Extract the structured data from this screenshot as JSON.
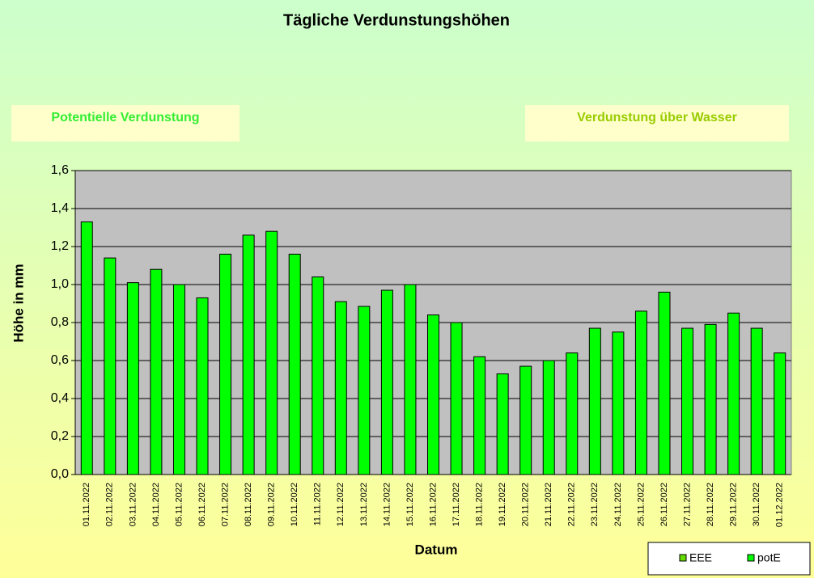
{
  "chart_data": {
    "type": "bar",
    "title": "Tägliche Verdunstungshöhen",
    "panels": [
      "Potentielle Verdunstung",
      "Verdunstung über Wasser"
    ],
    "y_label": "Höhe in mm",
    "x_label": "Datum",
    "categories": [
      "01.11.2022",
      "02.11.2022",
      "03.11.2022",
      "04.11.2022",
      "05.11.2022",
      "06.11.2022",
      "07.11.2022",
      "08.11.2022",
      "09.11.2022",
      "10.11.2022",
      "11.11.2022",
      "12.11.2022",
      "13.11.2022",
      "14.11.2022",
      "15.11.2022",
      "16.11.2022",
      "17.11.2022",
      "18.11.2022",
      "19.11.2022",
      "20.11.2022",
      "21.11.2022",
      "22.11.2022",
      "23.11.2022",
      "24.11.2022",
      "25.11.2022",
      "26.11.2022",
      "27.11.2022",
      "28.11.2022",
      "29.11.2022",
      "30.11.2022",
      "01.12.2022"
    ],
    "series": [
      {
        "name": "potE",
        "color": "#00ff00",
        "values": [
          1.33,
          1.14,
          1.01,
          1.08,
          1.0,
          0.93,
          1.16,
          1.26,
          1.28,
          1.16,
          1.04,
          0.91,
          0.885,
          0.97,
          1.0,
          0.84,
          0.8,
          0.62,
          0.53,
          0.57,
          0.6,
          0.64,
          0.77,
          0.75,
          0.86,
          0.96,
          0.77,
          0.79,
          0.85,
          0.77,
          0.64
        ]
      }
    ],
    "legend": [
      {
        "name": "EEE",
        "color": "#66dd00"
      },
      {
        "name": "potE",
        "color": "#00ff00"
      }
    ],
    "ylim": [
      0,
      1.6
    ],
    "yticks": [
      {
        "value": 0,
        "label": "0,0"
      },
      {
        "value": 0.2,
        "label": "0,2"
      },
      {
        "value": 0.4,
        "label": "0,4"
      },
      {
        "value": 0.6,
        "label": "0,6"
      },
      {
        "value": 0.8,
        "label": "0,8"
      },
      {
        "value": 1.0,
        "label": "1,0"
      },
      {
        "value": 1.2,
        "label": "1,2"
      },
      {
        "value": 1.4,
        "label": "1,4"
      },
      {
        "value": 1.6,
        "label": "1,6"
      }
    ],
    "grid": true
  }
}
